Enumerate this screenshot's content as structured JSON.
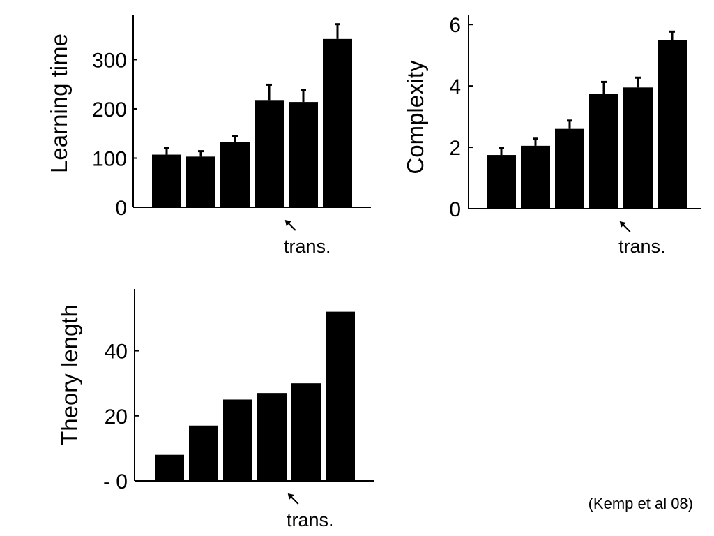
{
  "caption": "(Kemp et al 08)",
  "colors": {
    "bar": "#000000",
    "axis": "#000000",
    "background": "#ffffff"
  },
  "chart_data": [
    {
      "type": "bar",
      "ylabel": "Learning time",
      "ylim": [
        0,
        390
      ],
      "yticks": [
        0,
        100,
        200,
        300
      ],
      "ytick_labels": [
        "0",
        "100",
        "200",
        "300"
      ],
      "values": [
        107,
        103,
        133,
        218,
        214,
        342
      ],
      "errors": [
        13,
        11,
        12,
        31,
        24,
        30
      ],
      "annotation": {
        "text": "trans.",
        "category_index": 3.75
      },
      "grid": false
    },
    {
      "type": "bar",
      "ylabel": "Complexity",
      "ylim": [
        0,
        6.3
      ],
      "yticks": [
        0,
        2,
        4,
        6
      ],
      "ytick_labels": [
        "0",
        "2",
        "4",
        "6"
      ],
      "values": [
        1.75,
        2.05,
        2.6,
        3.75,
        3.95,
        5.5
      ],
      "errors": [
        0.22,
        0.23,
        0.27,
        0.38,
        0.32,
        0.27
      ],
      "annotation": {
        "text": "trans.",
        "category_index": 3.75
      },
      "grid": false
    },
    {
      "type": "bar",
      "ylabel": "Theory length",
      "ylim": [
        0,
        59
      ],
      "yticks": [
        0,
        20,
        40
      ],
      "ytick_labels": [
        "- 0",
        "20",
        "40"
      ],
      "values": [
        8,
        17,
        25,
        27,
        30,
        52
      ],
      "annotation": {
        "text": "trans.",
        "category_index": 3.75
      },
      "grid": false
    }
  ]
}
